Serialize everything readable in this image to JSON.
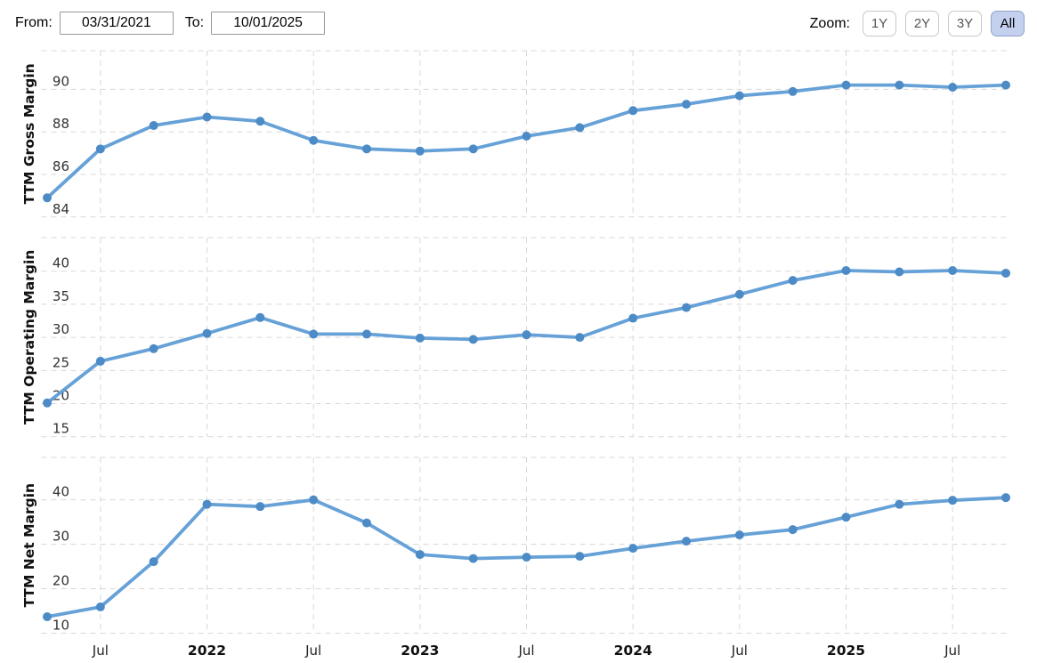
{
  "controls": {
    "from_label": "From:",
    "from_value": "03/31/2021",
    "to_label": "To:",
    "to_value": "10/01/2025",
    "zoom_label": "Zoom:",
    "zoom_buttons": [
      {
        "label": "1Y",
        "active": false
      },
      {
        "label": "2Y",
        "active": false
      },
      {
        "label": "3Y",
        "active": false
      },
      {
        "label": "All",
        "active": true
      }
    ]
  },
  "colors": {
    "line": "#66a1d7",
    "marker": "#4c8bc6",
    "grid": "#d8d8d8",
    "tick_text": "#333333",
    "axis_title": "#111111",
    "active_zoom_bg": "#c3d1ef",
    "active_zoom_border": "#8fa1c7"
  },
  "x_axis": {
    "dates": [
      "2021-03-31",
      "2021-06-30",
      "2021-09-30",
      "2021-12-31",
      "2022-03-31",
      "2022-06-30",
      "2022-09-30",
      "2022-12-31",
      "2023-03-31",
      "2023-06-30",
      "2023-09-30",
      "2023-12-31",
      "2024-03-31",
      "2024-06-30",
      "2024-09-30",
      "2024-12-31",
      "2025-03-31",
      "2025-06-30",
      "2025-09-30"
    ],
    "ticks": [
      {
        "index": 1,
        "label": "Jul",
        "bold": false
      },
      {
        "index": 3,
        "label": "2022",
        "bold": true
      },
      {
        "index": 5,
        "label": "Jul",
        "bold": false
      },
      {
        "index": 7,
        "label": "2023",
        "bold": true
      },
      {
        "index": 9,
        "label": "Jul",
        "bold": false
      },
      {
        "index": 11,
        "label": "2024",
        "bold": true
      },
      {
        "index": 13,
        "label": "Jul",
        "bold": false
      },
      {
        "index": 15,
        "label": "2025",
        "bold": true
      },
      {
        "index": 17,
        "label": "Jul",
        "bold": false
      }
    ]
  },
  "chart_data": [
    {
      "type": "line",
      "ylabel": "TTM Gross Margin",
      "values": [
        84.9,
        87.2,
        88.3,
        88.7,
        88.5,
        87.6,
        87.2,
        87.1,
        87.2,
        87.8,
        88.2,
        89.0,
        89.3,
        89.7,
        89.9,
        90.2,
        90.2,
        90.1,
        90.2
      ],
      "yticks": [
        84,
        86,
        88,
        90
      ],
      "ylim": [
        83.6,
        91.9
      ],
      "grid": true,
      "legend": "none"
    },
    {
      "type": "line",
      "ylabel": "TTM Operating Margin",
      "values": [
        20.1,
        26.4,
        28.3,
        30.6,
        33.0,
        30.5,
        30.5,
        29.9,
        29.7,
        30.4,
        30.0,
        32.9,
        34.5,
        36.5,
        38.6,
        40.1,
        39.9,
        40.1,
        39.7
      ],
      "yticks": [
        15,
        20,
        25,
        30,
        35,
        40
      ],
      "ylim": [
        13.7,
        45.3
      ],
      "grid": true,
      "legend": "none"
    },
    {
      "type": "line",
      "ylabel": "TTM Net Margin",
      "values": [
        13.7,
        15.9,
        26.1,
        39.0,
        38.5,
        40.0,
        34.8,
        27.7,
        26.8,
        27.1,
        27.3,
        29.1,
        30.7,
        32.1,
        33.3,
        36.1,
        39.0,
        39.9,
        40.5
      ],
      "yticks": [
        10,
        20,
        30,
        40
      ],
      "ylim": [
        8.7,
        50.0
      ],
      "grid": true,
      "legend": "none"
    }
  ]
}
